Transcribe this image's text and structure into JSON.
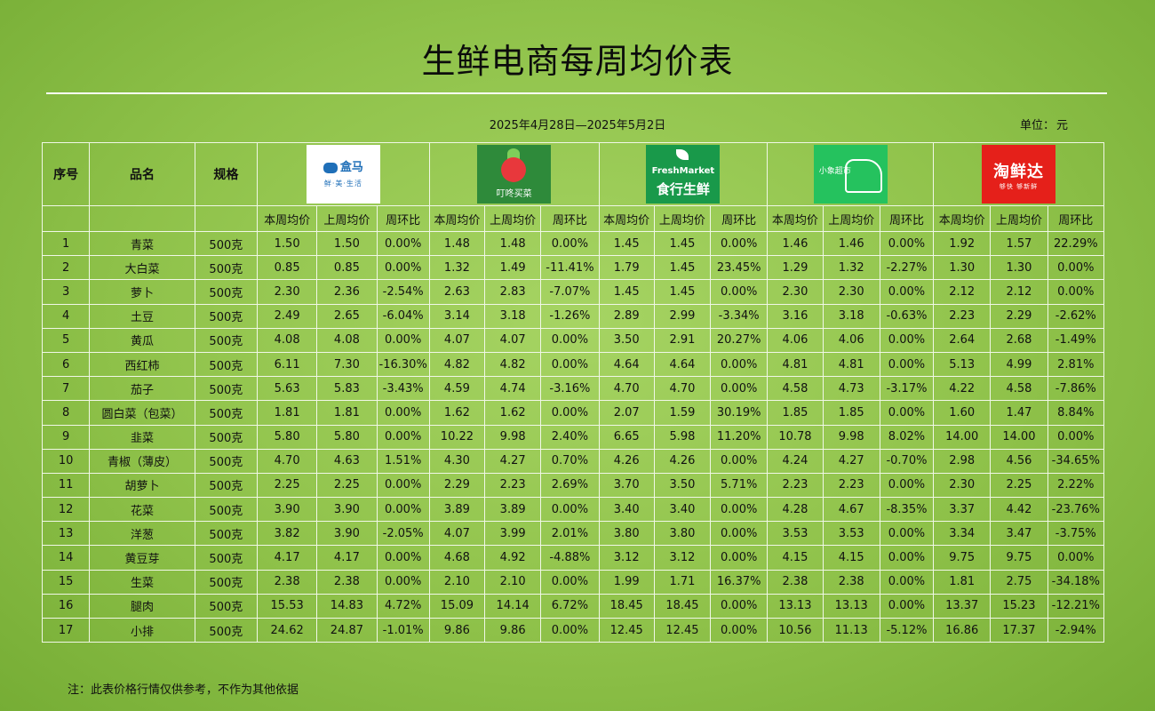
{
  "title": "生鲜电商每周均价表",
  "date_range": "2025年4月28日—2025年5月2日",
  "unit_label": "单位：",
  "unit_value": "元",
  "headers": {
    "index": "序号",
    "name": "品名",
    "spec": "规格",
    "sub": [
      "本周均价",
      "上周均价",
      "周环比"
    ]
  },
  "platforms": [
    {
      "logo": "hema-logo",
      "logo_text": "盒马",
      "logo_sub": "鲜·美·生活"
    },
    {
      "logo": "dingdong-logo",
      "logo_text": "叮咚买菜"
    },
    {
      "logo": "freshmarket-logo",
      "logo_text": "FreshMarket",
      "logo_sub": "食行生鲜"
    },
    {
      "logo": "xiaoxiang-logo",
      "logo_text": "小象超市"
    },
    {
      "logo": "taoxianda-logo",
      "logo_text": "淘鲜达",
      "logo_sub": "够快 够新鲜"
    }
  ],
  "rows": [
    [
      "1",
      "青菜",
      "500克",
      "1.50",
      "1.50",
      "0.00%",
      "1.48",
      "1.48",
      "0.00%",
      "1.45",
      "1.45",
      "0.00%",
      "1.46",
      "1.46",
      "0.00%",
      "1.92",
      "1.57",
      "22.29%"
    ],
    [
      "2",
      "大白菜",
      "500克",
      "0.85",
      "0.85",
      "0.00%",
      "1.32",
      "1.49",
      "-11.41%",
      "1.79",
      "1.45",
      "23.45%",
      "1.29",
      "1.32",
      "-2.27%",
      "1.30",
      "1.30",
      "0.00%"
    ],
    [
      "3",
      "萝卜",
      "500克",
      "2.30",
      "2.36",
      "-2.54%",
      "2.63",
      "2.83",
      "-7.07%",
      "1.45",
      "1.45",
      "0.00%",
      "2.30",
      "2.30",
      "0.00%",
      "2.12",
      "2.12",
      "0.00%"
    ],
    [
      "4",
      "土豆",
      "500克",
      "2.49",
      "2.65",
      "-6.04%",
      "3.14",
      "3.18",
      "-1.26%",
      "2.89",
      "2.99",
      "-3.34%",
      "3.16",
      "3.18",
      "-0.63%",
      "2.23",
      "2.29",
      "-2.62%"
    ],
    [
      "5",
      "黄瓜",
      "500克",
      "4.08",
      "4.08",
      "0.00%",
      "4.07",
      "4.07",
      "0.00%",
      "3.50",
      "2.91",
      "20.27%",
      "4.06",
      "4.06",
      "0.00%",
      "2.64",
      "2.68",
      "-1.49%"
    ],
    [
      "6",
      "西红柿",
      "500克",
      "6.11",
      "7.30",
      "-16.30%",
      "4.82",
      "4.82",
      "0.00%",
      "4.64",
      "4.64",
      "0.00%",
      "4.81",
      "4.81",
      "0.00%",
      "5.13",
      "4.99",
      "2.81%"
    ],
    [
      "7",
      "茄子",
      "500克",
      "5.63",
      "5.83",
      "-3.43%",
      "4.59",
      "4.74",
      "-3.16%",
      "4.70",
      "4.70",
      "0.00%",
      "4.58",
      "4.73",
      "-3.17%",
      "4.22",
      "4.58",
      "-7.86%"
    ],
    [
      "8",
      "圆白菜（包菜）",
      "500克",
      "1.81",
      "1.81",
      "0.00%",
      "1.62",
      "1.62",
      "0.00%",
      "2.07",
      "1.59",
      "30.19%",
      "1.85",
      "1.85",
      "0.00%",
      "1.60",
      "1.47",
      "8.84%"
    ],
    [
      "9",
      "韭菜",
      "500克",
      "5.80",
      "5.80",
      "0.00%",
      "10.22",
      "9.98",
      "2.40%",
      "6.65",
      "5.98",
      "11.20%",
      "10.78",
      "9.98",
      "8.02%",
      "14.00",
      "14.00",
      "0.00%"
    ],
    [
      "10",
      "青椒（薄皮）",
      "500克",
      "4.70",
      "4.63",
      "1.51%",
      "4.30",
      "4.27",
      "0.70%",
      "4.26",
      "4.26",
      "0.00%",
      "4.24",
      "4.27",
      "-0.70%",
      "2.98",
      "4.56",
      "-34.65%"
    ],
    [
      "11",
      "胡萝卜",
      "500克",
      "2.25",
      "2.25",
      "0.00%",
      "2.29",
      "2.23",
      "2.69%",
      "3.70",
      "3.50",
      "5.71%",
      "2.23",
      "2.23",
      "0.00%",
      "2.30",
      "2.25",
      "2.22%"
    ],
    [
      "12",
      "花菜",
      "500克",
      "3.90",
      "3.90",
      "0.00%",
      "3.89",
      "3.89",
      "0.00%",
      "3.40",
      "3.40",
      "0.00%",
      "4.28",
      "4.67",
      "-8.35%",
      "3.37",
      "4.42",
      "-23.76%"
    ],
    [
      "13",
      "洋葱",
      "500克",
      "3.82",
      "3.90",
      "-2.05%",
      "4.07",
      "3.99",
      "2.01%",
      "3.80",
      "3.80",
      "0.00%",
      "3.53",
      "3.53",
      "0.00%",
      "3.34",
      "3.47",
      "-3.75%"
    ],
    [
      "14",
      "黄豆芽",
      "500克",
      "4.17",
      "4.17",
      "0.00%",
      "4.68",
      "4.92",
      "-4.88%",
      "3.12",
      "3.12",
      "0.00%",
      "4.15",
      "4.15",
      "0.00%",
      "9.75",
      "9.75",
      "0.00%"
    ],
    [
      "15",
      "生菜",
      "500克",
      "2.38",
      "2.38",
      "0.00%",
      "2.10",
      "2.10",
      "0.00%",
      "1.99",
      "1.71",
      "16.37%",
      "2.38",
      "2.38",
      "0.00%",
      "1.81",
      "2.75",
      "-34.18%"
    ],
    [
      "16",
      "腿肉",
      "500克",
      "15.53",
      "14.83",
      "4.72%",
      "15.09",
      "14.14",
      "6.72%",
      "18.45",
      "18.45",
      "0.00%",
      "13.13",
      "13.13",
      "0.00%",
      "13.37",
      "15.23",
      "-12.21%"
    ],
    [
      "17",
      "小排",
      "500克",
      "24.62",
      "24.87",
      "-1.01%",
      "9.86",
      "9.86",
      "0.00%",
      "12.45",
      "12.45",
      "0.00%",
      "10.56",
      "11.13",
      "-5.12%",
      "16.86",
      "17.37",
      "-2.94%"
    ]
  ],
  "note": "注：此表价格行情仅供参考，不作为其他依据"
}
